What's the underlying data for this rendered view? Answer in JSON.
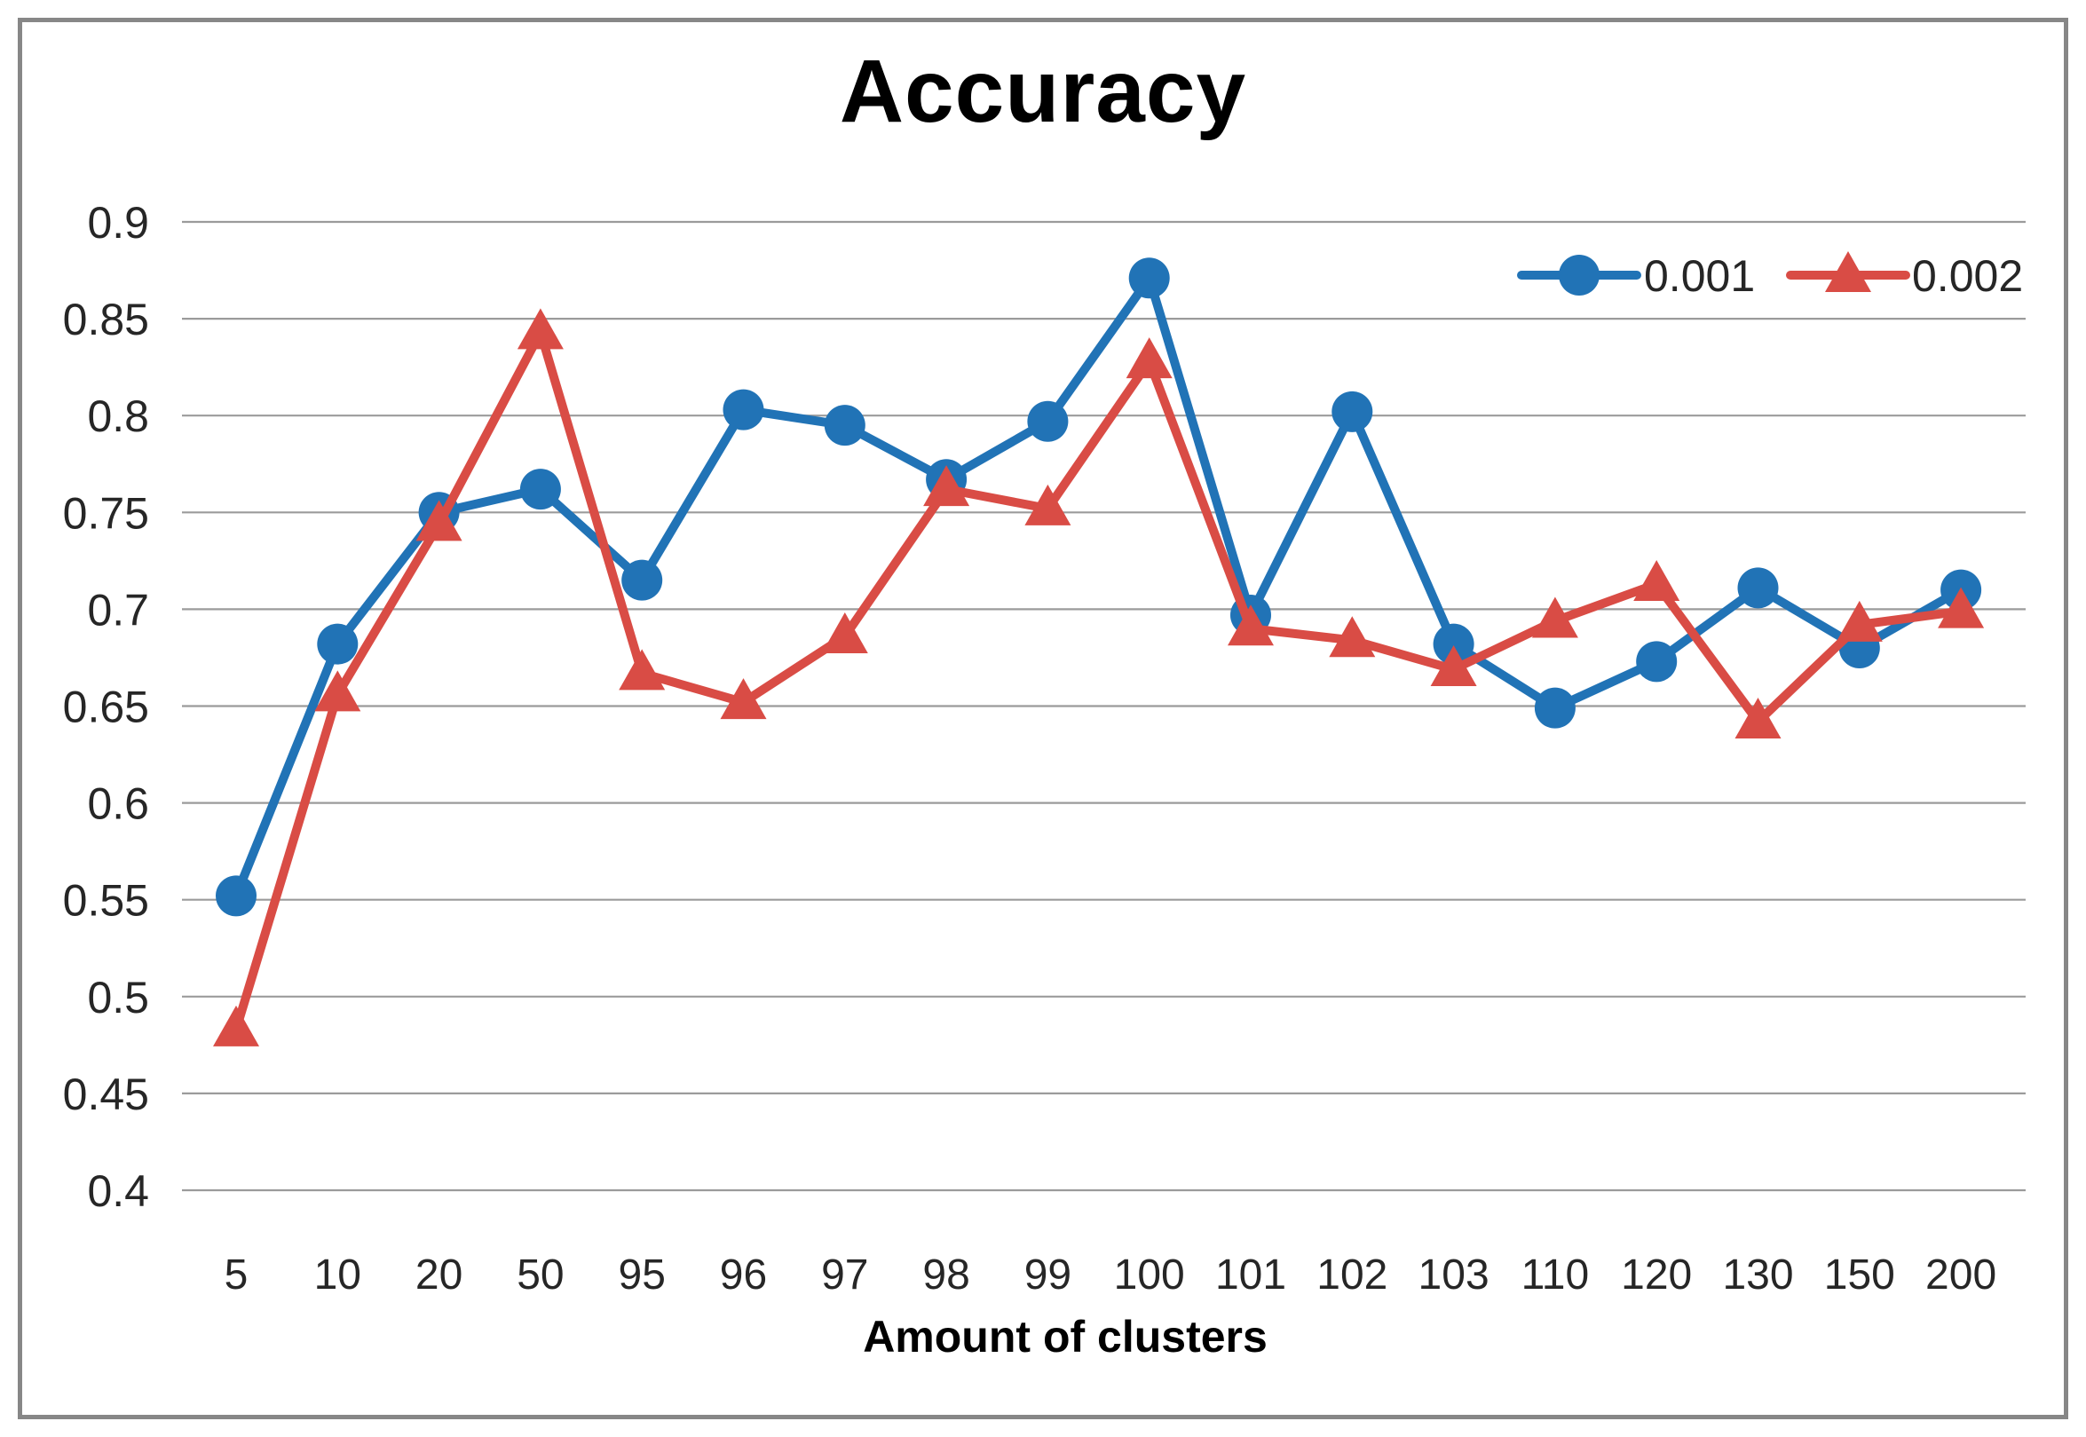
{
  "chart_data": {
    "type": "line",
    "title": "Accuracy",
    "xlabel": "Amount of clusters",
    "ylabel": "",
    "categories": [
      "5",
      "10",
      "20",
      "50",
      "95",
      "96",
      "97",
      "98",
      "99",
      "100",
      "101",
      "102",
      "103",
      "110",
      "120",
      "130",
      "150",
      "200"
    ],
    "series": [
      {
        "name": "0.001",
        "marker": "circle",
        "color": "#2173B6",
        "values": [
          0.552,
          0.682,
          0.75,
          0.762,
          0.715,
          0.803,
          0.795,
          0.767,
          0.797,
          0.871,
          0.697,
          0.802,
          0.682,
          0.649,
          0.673,
          0.711,
          0.68,
          0.71
        ]
      },
      {
        "name": "0.002",
        "marker": "triangle",
        "color": "#D94C45",
        "values": [
          0.483,
          0.656,
          0.744,
          0.843,
          0.667,
          0.652,
          0.686,
          0.762,
          0.752,
          0.828,
          0.69,
          0.684,
          0.669,
          0.694,
          0.713,
          0.642,
          0.692,
          0.699
        ]
      }
    ],
    "ylim": [
      0.4,
      0.9
    ],
    "ytick_labels": [
      "0.9",
      "0.85",
      "0.8",
      "0.75",
      "0.7",
      "0.65",
      "0.6",
      "0.55",
      "0.5",
      "0.45",
      "0.4"
    ],
    "grid": true,
    "legend_position": "top-right"
  },
  "colors": {
    "grid": "#9B9B9B",
    "frame": "#878787",
    "text": "#262626",
    "title": "#000000",
    "background": "#FFFFFF"
  }
}
